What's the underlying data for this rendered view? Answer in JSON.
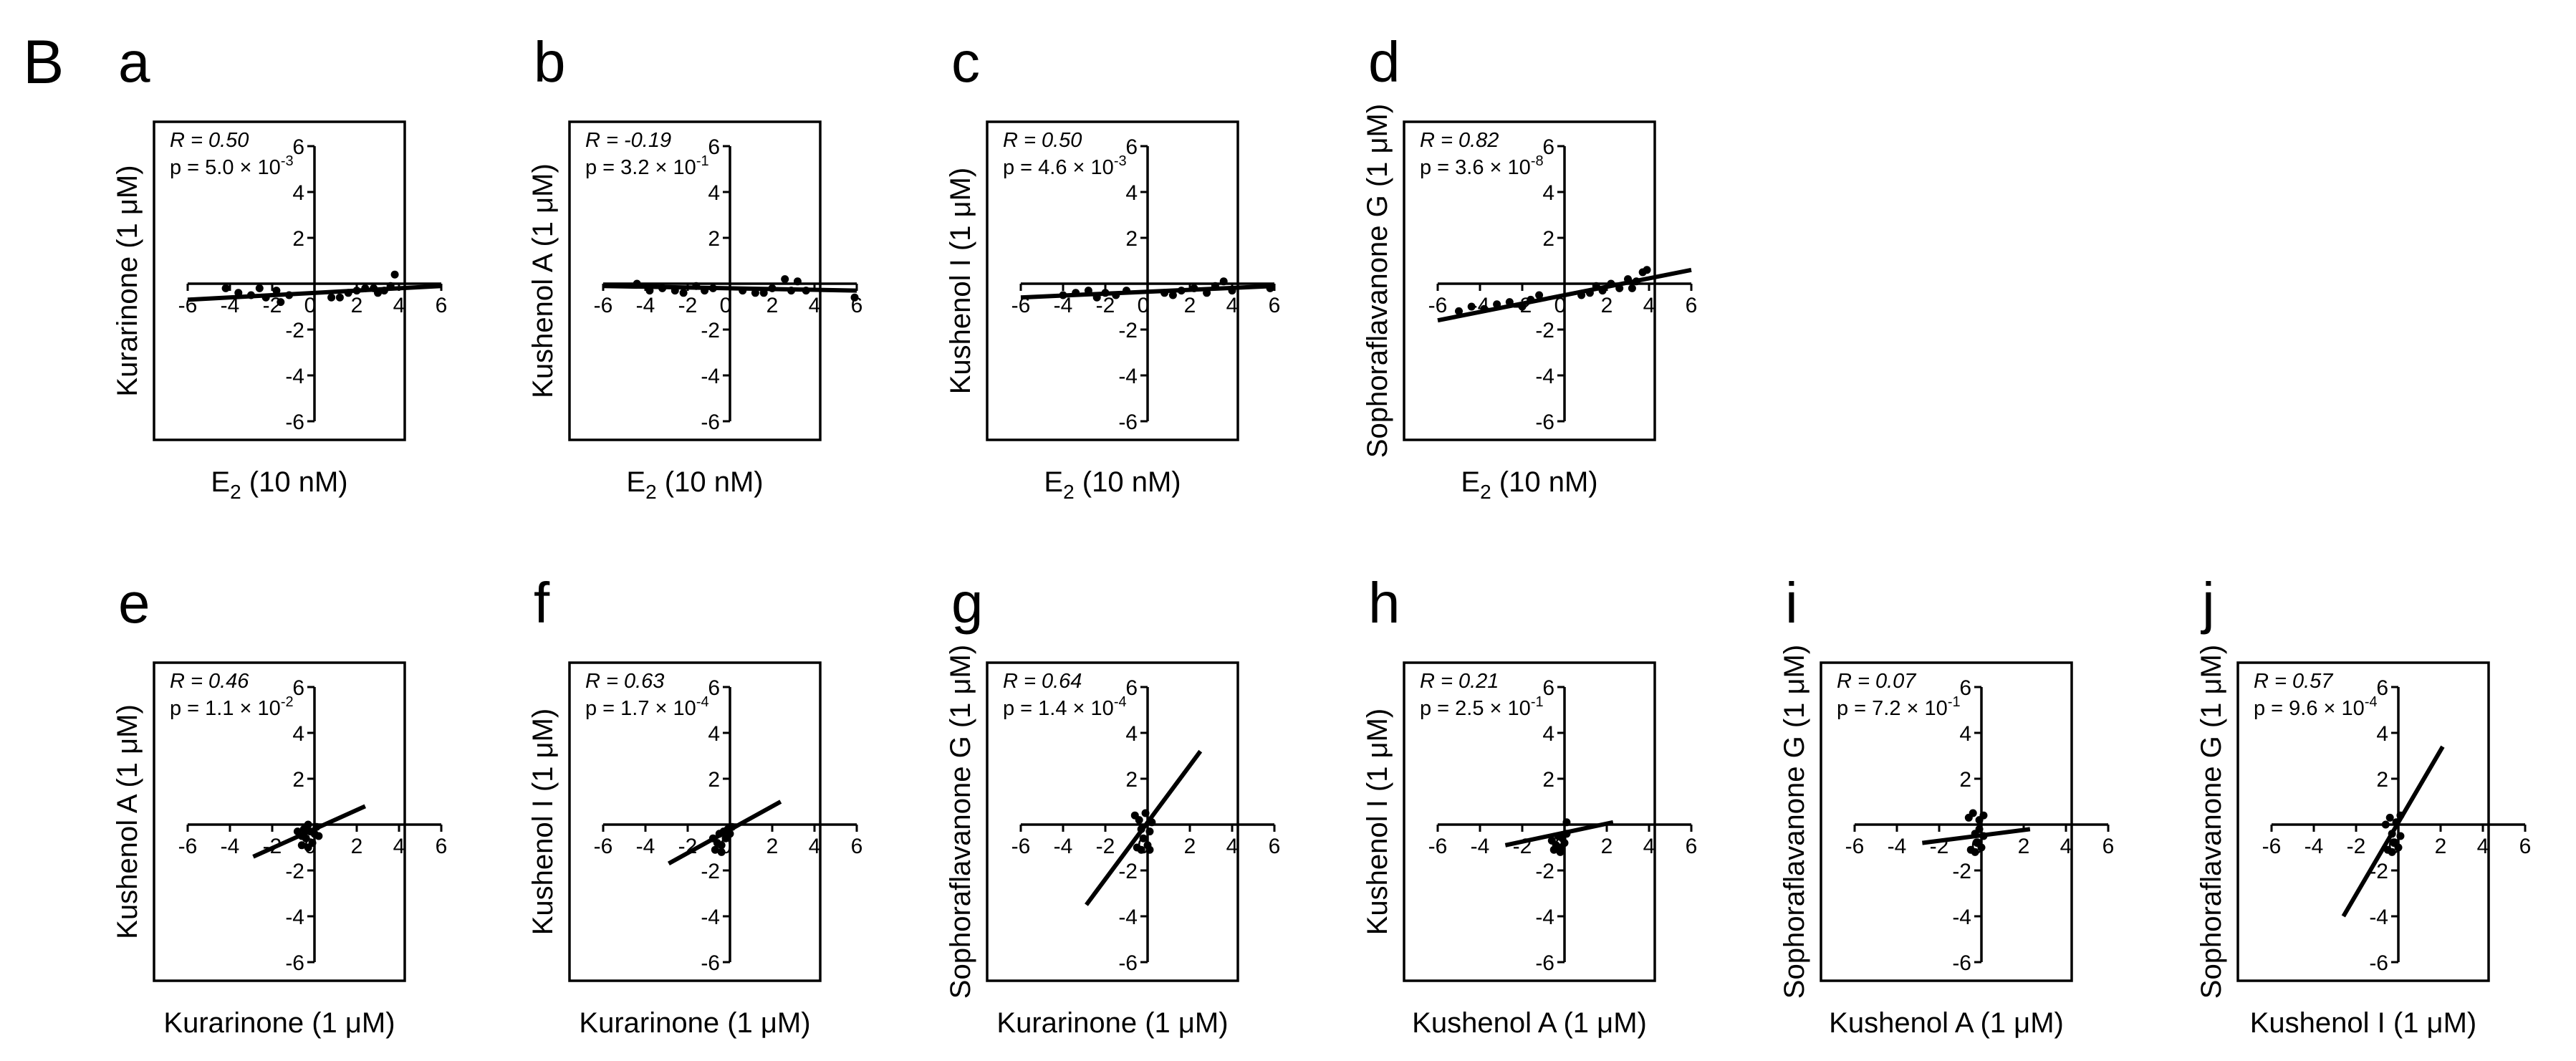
{
  "figure": {
    "section_label": "B"
  },
  "chart_data": [
    {
      "panel": "a",
      "type": "scatter",
      "xlabel": "E",
      "xlabel_sub": "2",
      "xlabel_suffix": " (10 nM)",
      "ylabel": "Kurarinone (1 μM)",
      "r_text": "R = 0.50",
      "p_prefix": "p = 5.0 × 10",
      "p_exp": "-3",
      "xlim": [
        -6,
        6
      ],
      "ylim": [
        -6,
        6
      ],
      "xticks": [
        -6,
        -4,
        -2,
        0,
        2,
        4,
        6
      ],
      "yticks": [
        -6,
        -4,
        -2,
        2,
        4,
        6
      ],
      "points": [
        [
          -4.2,
          -0.2
        ],
        [
          -3.6,
          -0.4
        ],
        [
          -3.0,
          -0.5
        ],
        [
          -2.6,
          -0.2
        ],
        [
          -2.3,
          -0.6
        ],
        [
          -1.8,
          -0.3
        ],
        [
          -1.6,
          -0.8
        ],
        [
          -1.2,
          -0.5
        ],
        [
          0.8,
          -0.6
        ],
        [
          1.2,
          -0.6
        ],
        [
          1.6,
          -0.4
        ],
        [
          2.0,
          -0.3
        ],
        [
          2.4,
          -0.2
        ],
        [
          2.8,
          -0.2
        ],
        [
          3.0,
          -0.4
        ],
        [
          3.3,
          -0.3
        ],
        [
          3.6,
          -0.1
        ],
        [
          3.8,
          0.4
        ]
      ],
      "fit": [
        [
          -6,
          -0.7
        ],
        [
          6,
          -0.1
        ]
      ],
      "marker_color": "#000000",
      "line_color": "#000000"
    },
    {
      "panel": "b",
      "type": "scatter",
      "xlabel": "E",
      "xlabel_sub": "2",
      "xlabel_suffix": " (10 nM)",
      "ylabel": "Kushenol A (1 μM)",
      "r_text": "R = -0.19",
      "p_prefix": "p = 3.2 × 10",
      "p_exp": "-1",
      "xlim": [
        -6,
        6
      ],
      "ylim": [
        -6,
        6
      ],
      "xticks": [
        -6,
        -4,
        -2,
        0,
        2,
        4,
        6
      ],
      "yticks": [
        -6,
        -4,
        -2,
        2,
        4,
        6
      ],
      "points": [
        [
          -4.4,
          0.0
        ],
        [
          -3.8,
          -0.3
        ],
        [
          -3.2,
          -0.2
        ],
        [
          -2.6,
          -0.3
        ],
        [
          -2.2,
          -0.4
        ],
        [
          -1.6,
          -0.1
        ],
        [
          -1.2,
          -0.3
        ],
        [
          -0.8,
          -0.2
        ],
        [
          0.6,
          -0.3
        ],
        [
          1.2,
          -0.4
        ],
        [
          1.6,
          -0.4
        ],
        [
          2.0,
          -0.2
        ],
        [
          2.6,
          0.2
        ],
        [
          2.9,
          -0.3
        ],
        [
          3.2,
          0.1
        ],
        [
          3.6,
          -0.3
        ],
        [
          5.9,
          -0.6
        ]
      ],
      "fit": [
        [
          -6,
          -0.1
        ],
        [
          6,
          -0.3
        ]
      ],
      "marker_color": "#000000",
      "line_color": "#000000"
    },
    {
      "panel": "c",
      "type": "scatter",
      "xlabel": "E",
      "xlabel_sub": "2",
      "xlabel_suffix": " (10 nM)",
      "ylabel": "Kushenol I (1 μM)",
      "r_text": "R = 0.50",
      "p_prefix": "p = 4.6 × 10",
      "p_exp": "-3",
      "xlim": [
        -6,
        6
      ],
      "ylim": [
        -6,
        6
      ],
      "xticks": [
        -6,
        -4,
        -2,
        0,
        2,
        4,
        6
      ],
      "yticks": [
        -6,
        -4,
        -2,
        2,
        4,
        6
      ],
      "points": [
        [
          -4.0,
          -0.5
        ],
        [
          -3.4,
          -0.4
        ],
        [
          -2.8,
          -0.3
        ],
        [
          -2.4,
          -0.6
        ],
        [
          -2.0,
          -0.4
        ],
        [
          -1.5,
          -0.5
        ],
        [
          -1.0,
          -0.3
        ],
        [
          0.8,
          -0.4
        ],
        [
          1.2,
          -0.5
        ],
        [
          1.6,
          -0.3
        ],
        [
          2.2,
          -0.2
        ],
        [
          2.8,
          -0.4
        ],
        [
          3.2,
          -0.1
        ],
        [
          3.6,
          0.1
        ],
        [
          4.0,
          -0.3
        ],
        [
          5.8,
          -0.2
        ]
      ],
      "fit": [
        [
          -6,
          -0.6
        ],
        [
          6,
          -0.1
        ]
      ],
      "marker_color": "#000000",
      "line_color": "#000000"
    },
    {
      "panel": "d",
      "type": "scatter",
      "xlabel": "E",
      "xlabel_sub": "2",
      "xlabel_suffix": " (10 nM)",
      "ylabel": "Sophoraflavanone G (1 μM)",
      "r_text": "R = 0.82",
      "p_prefix": "p = 3.6 × 10",
      "p_exp": "-8",
      "xlim": [
        -6,
        6
      ],
      "ylim": [
        -6,
        6
      ],
      "xticks": [
        -6,
        -4,
        -2,
        0,
        2,
        4,
        6
      ],
      "yticks": [
        -6,
        -4,
        -2,
        2,
        4,
        6
      ],
      "points": [
        [
          -5.0,
          -1.2
        ],
        [
          -4.4,
          -1.0
        ],
        [
          -3.8,
          -1.1
        ],
        [
          -3.2,
          -0.9
        ],
        [
          -2.6,
          -0.8
        ],
        [
          -2.0,
          -1.0
        ],
        [
          -1.6,
          -0.7
        ],
        [
          -1.2,
          -0.5
        ],
        [
          0.8,
          -0.5
        ],
        [
          1.2,
          -0.4
        ],
        [
          1.5,
          -0.1
        ],
        [
          1.8,
          -0.3
        ],
        [
          2.2,
          0.0
        ],
        [
          2.6,
          -0.2
        ],
        [
          3.0,
          0.2
        ],
        [
          3.2,
          -0.2
        ],
        [
          3.4,
          0.1
        ],
        [
          3.7,
          0.5
        ],
        [
          3.9,
          0.6
        ]
      ],
      "fit": [
        [
          -6,
          -1.6
        ],
        [
          6,
          0.6
        ]
      ],
      "marker_color": "#000000",
      "line_color": "#000000"
    },
    {
      "panel": "e",
      "type": "scatter",
      "xlabel": "Kurarinone (1 μM)",
      "ylabel": "Kushenol A (1 μM)",
      "r_text": "R = 0.46",
      "p_prefix": "p = 1.1 × 10",
      "p_exp": "-2",
      "xlim": [
        -6,
        6
      ],
      "ylim": [
        -6,
        6
      ],
      "xticks": [
        -6,
        -4,
        -2,
        0,
        2,
        4,
        6
      ],
      "yticks": [
        -6,
        -4,
        -2,
        2,
        4,
        6
      ],
      "points": [
        [
          -0.8,
          -0.3
        ],
        [
          -0.6,
          -0.5
        ],
        [
          -0.5,
          -0.2
        ],
        [
          -0.4,
          -0.6
        ],
        [
          -0.3,
          0.0
        ],
        [
          -0.2,
          -0.3
        ],
        [
          -0.1,
          -0.8
        ],
        [
          0.0,
          -0.4
        ],
        [
          0.1,
          -0.1
        ],
        [
          -0.6,
          -0.9
        ],
        [
          -0.3,
          -1.0
        ],
        [
          0.2,
          -0.5
        ]
      ],
      "fit": [
        [
          -2.9,
          -1.4
        ],
        [
          2.4,
          0.8
        ]
      ],
      "marker_color": "#000000",
      "line_color": "#000000"
    },
    {
      "panel": "f",
      "type": "scatter",
      "xlabel": "Kurarinone (1 μM)",
      "ylabel": "Kushenol I (1 μM)",
      "r_text": "R = 0.63",
      "p_prefix": "p = 1.7 × 10",
      "p_exp": "-4",
      "xlim": [
        -6,
        6
      ],
      "ylim": [
        -6,
        6
      ],
      "xticks": [
        -6,
        -4,
        -2,
        0,
        2,
        4,
        6
      ],
      "yticks": [
        -6,
        -4,
        -2,
        2,
        4,
        6
      ],
      "points": [
        [
          -0.8,
          -0.6
        ],
        [
          -0.6,
          -0.8
        ],
        [
          -0.5,
          -0.4
        ],
        [
          -0.4,
          -0.9
        ],
        [
          -0.3,
          -0.3
        ],
        [
          -0.2,
          -0.6
        ],
        [
          -0.1,
          -0.2
        ],
        [
          0.0,
          -0.4
        ],
        [
          0.1,
          -0.1
        ],
        [
          -0.7,
          -1.1
        ],
        [
          -0.4,
          -1.2
        ]
      ],
      "fit": [
        [
          -2.9,
          -1.7
        ],
        [
          2.4,
          1.0
        ]
      ],
      "marker_color": "#000000",
      "line_color": "#000000"
    },
    {
      "panel": "g",
      "type": "scatter",
      "xlabel": "Kurarinone (1 μM)",
      "ylabel": "Sophoraflavanone G (1 μM)",
      "r_text": "R = 0.64",
      "p_prefix": "p = 1.4 × 10",
      "p_exp": "-4",
      "xlim": [
        -6,
        6
      ],
      "ylim": [
        -6,
        6
      ],
      "xticks": [
        -6,
        -4,
        -2,
        0,
        2,
        4,
        6
      ],
      "yticks": [
        -6,
        -4,
        -2,
        2,
        4,
        6
      ],
      "points": [
        [
          -0.6,
          0.4
        ],
        [
          -0.4,
          0.2
        ],
        [
          -0.3,
          -0.2
        ],
        [
          -0.2,
          -0.6
        ],
        [
          -0.1,
          0.5
        ],
        [
          0.0,
          -0.9
        ],
        [
          0.1,
          -0.3
        ],
        [
          -0.5,
          -1.0
        ],
        [
          -0.3,
          -1.1
        ],
        [
          0.2,
          0.1
        ],
        [
          0.1,
          -1.1
        ]
      ],
      "fit": [
        [
          -2.9,
          -3.5
        ],
        [
          2.5,
          3.2
        ]
      ],
      "marker_color": "#000000",
      "line_color": "#000000"
    },
    {
      "panel": "h",
      "type": "scatter",
      "xlabel": "Kushenol A (1 μM)",
      "ylabel": "Kushenol I (1 μM)",
      "r_text": "R = 0.21",
      "p_prefix": "p = 2.5 × 10",
      "p_exp": "-1",
      "xlim": [
        -6,
        6
      ],
      "ylim": [
        -6,
        6
      ],
      "xticks": [
        -6,
        -4,
        -2,
        0,
        2,
        4,
        6
      ],
      "yticks": [
        -6,
        -4,
        -2,
        2,
        4,
        6
      ],
      "points": [
        [
          -0.6,
          -0.7
        ],
        [
          -0.4,
          -0.9
        ],
        [
          -0.3,
          -0.5
        ],
        [
          -0.2,
          -1.0
        ],
        [
          -0.1,
          -0.6
        ],
        [
          0.0,
          -0.8
        ],
        [
          0.1,
          -0.4
        ],
        [
          -0.5,
          -1.1
        ],
        [
          0.1,
          0.1
        ],
        [
          -0.2,
          -1.2
        ]
      ],
      "fit": [
        [
          -2.8,
          -0.9
        ],
        [
          2.3,
          0.1
        ]
      ],
      "marker_color": "#000000",
      "line_color": "#000000"
    },
    {
      "panel": "i",
      "type": "scatter",
      "xlabel": "Kushenol A (1 μM)",
      "ylabel": "Sophoraflavanone G (1 μM)",
      "r_text": "R = 0.07",
      "p_prefix": "p = 7.2 × 10",
      "p_exp": "-1",
      "xlim": [
        -6,
        6
      ],
      "ylim": [
        -6,
        6
      ],
      "xticks": [
        -6,
        -4,
        -2,
        0,
        2,
        4,
        6
      ],
      "yticks": [
        -6,
        -4,
        -2,
        2,
        4,
        6
      ],
      "points": [
        [
          -0.6,
          0.3
        ],
        [
          -0.4,
          0.5
        ],
        [
          -0.3,
          -0.4
        ],
        [
          -0.2,
          -0.8
        ],
        [
          -0.1,
          0.2
        ],
        [
          0.0,
          -1.0
        ],
        [
          0.1,
          -0.5
        ],
        [
          -0.5,
          -1.1
        ],
        [
          -0.3,
          -1.2
        ],
        [
          0.1,
          0.4
        ],
        [
          -0.1,
          -0.2
        ]
      ],
      "fit": [
        [
          -2.8,
          -0.8
        ],
        [
          2.3,
          -0.2
        ]
      ],
      "marker_color": "#000000",
      "line_color": "#000000"
    },
    {
      "panel": "j",
      "type": "scatter",
      "xlabel": "Kushenol I (1 μM)",
      "ylabel": "Sophoraflavanone G (1 μM)",
      "r_text": "R = 0.57",
      "p_prefix": "p = 9.6 × 10",
      "p_exp": "-4",
      "xlim": [
        -6,
        6
      ],
      "ylim": [
        -6,
        6
      ],
      "xticks": [
        -6,
        -4,
        -2,
        0,
        2,
        4,
        6
      ],
      "yticks": [
        -6,
        -4,
        -2,
        2,
        4,
        6
      ],
      "points": [
        [
          -0.6,
          0.0
        ],
        [
          -0.4,
          0.3
        ],
        [
          -0.3,
          -0.4
        ],
        [
          -0.2,
          -0.8
        ],
        [
          -0.1,
          0.1
        ],
        [
          0.0,
          -1.0
        ],
        [
          0.1,
          -0.5
        ],
        [
          -0.5,
          -1.1
        ],
        [
          -0.3,
          -1.2
        ],
        [
          0.1,
          0.4
        ]
      ],
      "fit": [
        [
          -2.6,
          -4.0
        ],
        [
          2.1,
          3.4
        ]
      ],
      "marker_color": "#000000",
      "line_color": "#000000"
    }
  ]
}
